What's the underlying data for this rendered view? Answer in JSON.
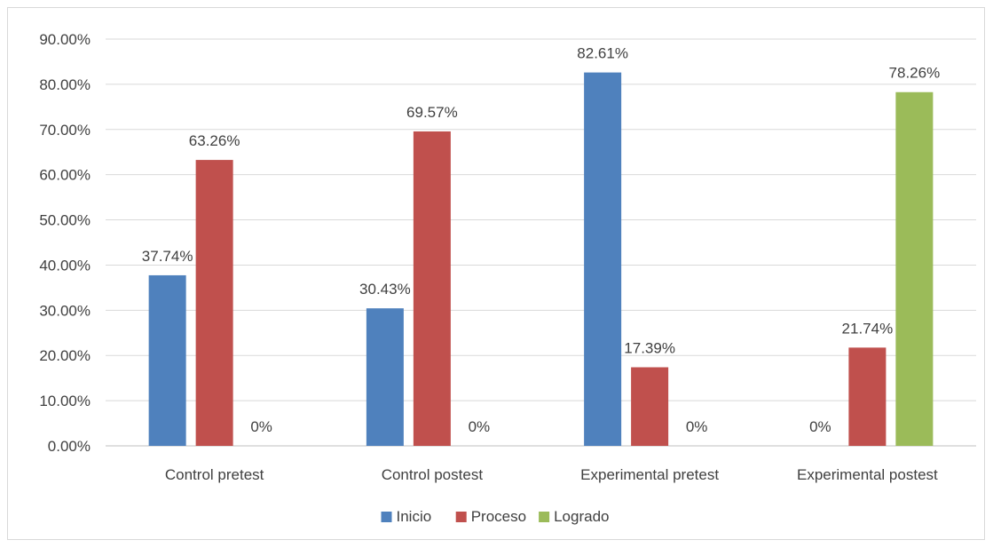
{
  "chart_data": {
    "type": "bar",
    "title": "",
    "xlabel": "",
    "ylabel": "",
    "categories": [
      "Control pretest",
      "Control postest",
      "Experimental pretest",
      "Experimental postest"
    ],
    "series": [
      {
        "name": "Inicio",
        "color": "#4f81bd",
        "values": [
          37.74,
          30.43,
          82.61,
          0
        ],
        "labels": [
          "37.74%",
          "30.43%",
          "82.61%",
          "0%"
        ]
      },
      {
        "name": "Proceso",
        "color": "#c0504d",
        "values": [
          63.26,
          69.57,
          17.39,
          21.74
        ],
        "labels": [
          "63.26%",
          "69.57%",
          "17.39%",
          "21.74%"
        ]
      },
      {
        "name": "Logrado",
        "color": "#9bbb59",
        "values": [
          0,
          0,
          0,
          78.26
        ],
        "labels": [
          "0%",
          "0%",
          "0%",
          "78.26%"
        ]
      }
    ],
    "ylim": [
      0,
      90
    ],
    "yticks": [
      0,
      10,
      20,
      30,
      40,
      50,
      60,
      70,
      80,
      90
    ],
    "ytick_labels": [
      "0.00%",
      "10.00%",
      "20.00%",
      "30.00%",
      "40.00%",
      "50.00%",
      "60.00%",
      "70.00%",
      "80.00%",
      "90.00%"
    ],
    "grid": true,
    "legend_position": "bottom"
  }
}
